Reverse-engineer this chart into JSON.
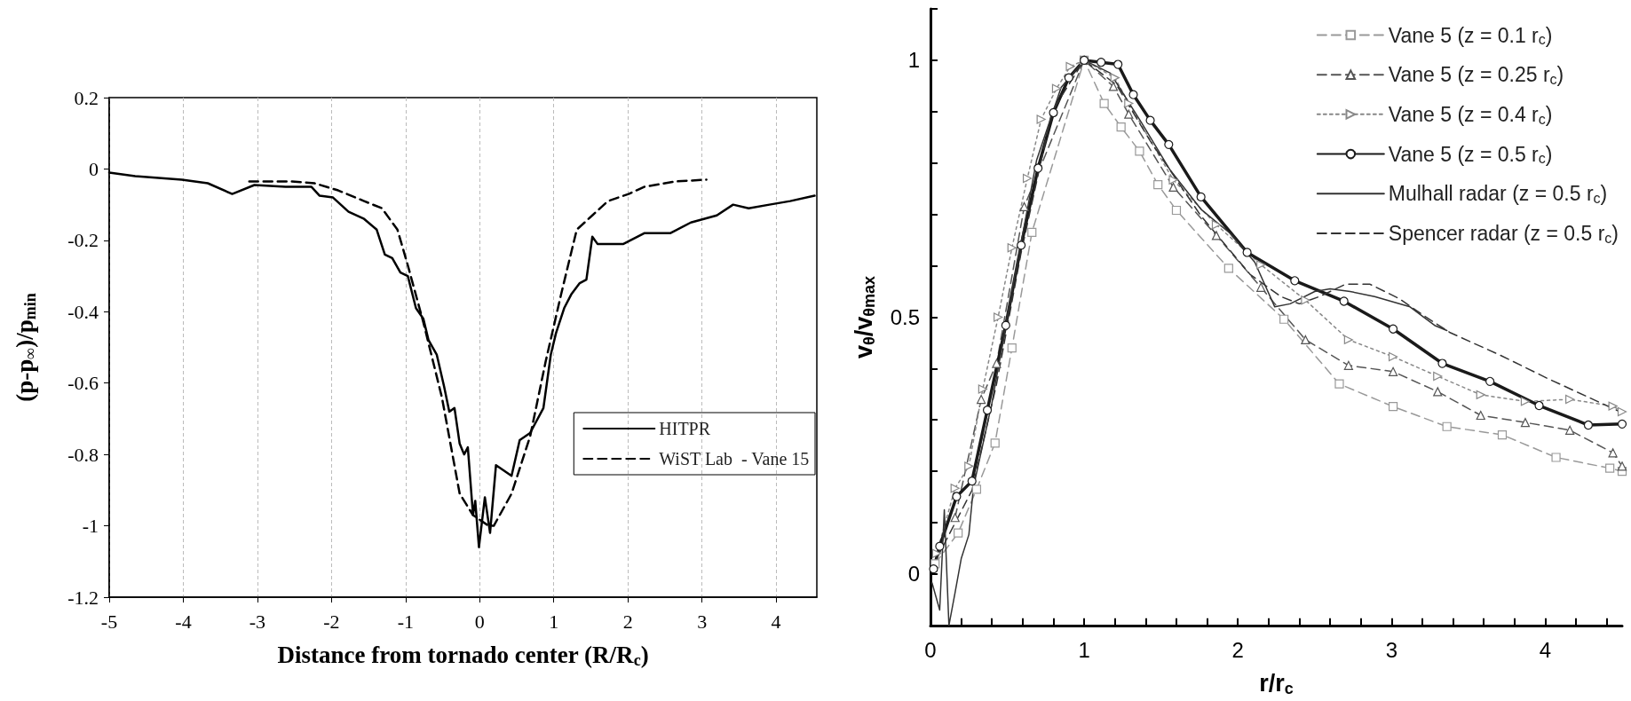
{
  "chart_data": [
    {
      "type": "line",
      "xlabel": "Distance from tornado center (R/R$_{c}$)",
      "ylabel": "(p-p$_{∞}$)/p$_{min}$",
      "xlim": [
        -5,
        4.55
      ],
      "xticks": [
        -5,
        -4,
        -3,
        -2,
        -1,
        0,
        1,
        2,
        3,
        4
      ],
      "ylim": [
        -1.2,
        0.2
      ],
      "yticks": [
        -1.2,
        -1,
        -0.8,
        -0.6,
        -0.4,
        -0.2,
        0,
        0.2
      ],
      "grid": "x",
      "legend": "bottom right",
      "marker": "none",
      "series": [
        {
          "name": "HITPR",
          "color": "#000000",
          "line_style": "solid",
          "x": [
            -5,
            -4.65,
            -4.02,
            -3.67,
            -3.34,
            -3.04,
            -2.62,
            -2.27,
            -2.16,
            -1.98,
            -1.77,
            -1.56,
            -1.39,
            -1.28,
            -1.18,
            -1.07,
            -0.97,
            -0.86,
            -0.76,
            -0.69,
            -0.58,
            -0.48,
            -0.41,
            -0.34,
            -0.27,
            -0.21,
            -0.16,
            -0.09,
            -0.06,
            -0.01,
            0.07,
            0.14,
            0.22,
            0.29,
            0.43,
            0.54,
            0.68,
            0.86,
            0.96,
            1.03,
            1.14,
            1.24,
            1.35,
            1.44,
            1.52,
            1.59,
            1.7,
            1.94,
            2.22,
            2.57,
            2.85,
            3.2,
            3.42,
            3.63,
            3.91,
            4.19,
            4.52
          ],
          "values": [
            -0.01,
            -0.02,
            -0.03,
            -0.04,
            -0.07,
            -0.045,
            -0.05,
            -0.05,
            -0.075,
            -0.08,
            -0.12,
            -0.14,
            -0.17,
            -0.24,
            -0.25,
            -0.29,
            -0.3,
            -0.39,
            -0.42,
            -0.48,
            -0.52,
            -0.61,
            -0.68,
            -0.67,
            -0.77,
            -0.8,
            -0.78,
            -0.97,
            -0.93,
            -1.06,
            -0.92,
            -1.02,
            -0.83,
            -0.84,
            -0.86,
            -0.76,
            -0.74,
            -0.67,
            -0.52,
            -0.46,
            -0.39,
            -0.35,
            -0.32,
            -0.31,
            -0.19,
            -0.21,
            -0.21,
            -0.21,
            -0.18,
            -0.18,
            -0.15,
            -0.13,
            -0.1,
            -0.11,
            -0.1,
            -0.09,
            -0.075
          ]
        },
        {
          "name": "WiST Lab  - Vane 15",
          "color": "#000000",
          "line_style": "dashed",
          "x": [
            -3.11,
            -2.55,
            -2.23,
            -1.91,
            -1.56,
            -1.32,
            -1.11,
            -0.97,
            -0.76,
            -0.51,
            -0.27,
            -0.09,
            0.12,
            0.19,
            0.43,
            0.68,
            0.89,
            1.1,
            1.31,
            1.52,
            1.73,
            2.01,
            2.22,
            2.64,
            3.06
          ],
          "values": [
            -0.035,
            -0.035,
            -0.04,
            -0.06,
            -0.09,
            -0.11,
            -0.17,
            -0.27,
            -0.43,
            -0.64,
            -0.91,
            -0.97,
            -1,
            -1,
            -0.91,
            -0.75,
            -0.54,
            -0.35,
            -0.17,
            -0.13,
            -0.09,
            -0.07,
            -0.05,
            -0.035,
            -0.03
          ]
        }
      ]
    },
    {
      "type": "line",
      "xlabel": "r/r$_{c}$",
      "ylabel": "v$_{θ}$/v$_{θmax}$",
      "xlim": [
        0,
        4.5
      ],
      "xticks": [
        0,
        {
          "value": 0.2,
          "label": null
        },
        {
          "value": 0.4,
          "label": null
        },
        {
          "value": 0.6,
          "label": null
        },
        {
          "value": 0.8,
          "label": null
        },
        1,
        {
          "value": 1.2,
          "label": null
        },
        {
          "value": 1.4,
          "label": null
        },
        {
          "value": 1.6,
          "label": null
        },
        {
          "value": 1.8,
          "label": null
        },
        2,
        {
          "value": 2.2,
          "label": null
        },
        {
          "value": 2.4,
          "label": null
        },
        {
          "value": 2.6,
          "label": null
        },
        {
          "value": 2.8,
          "label": null
        },
        3,
        {
          "value": 3.2,
          "label": null
        },
        {
          "value": 3.4,
          "label": null
        },
        {
          "value": 3.6,
          "label": null
        },
        {
          "value": 3.8,
          "label": null
        },
        4,
        {
          "value": 4.2,
          "label": null
        },
        {
          "value": 4.4,
          "label": null
        }
      ],
      "ylim": [
        -0.1,
        1.1
      ],
      "yticks": [
        0,
        {
          "value": 0.1,
          "label": null
        },
        {
          "value": 0.2,
          "label": null
        },
        {
          "value": 0.3,
          "label": null
        },
        {
          "value": 0.4,
          "label": null
        },
        0.5,
        {
          "value": 0.6,
          "label": null
        },
        {
          "value": 0.7,
          "label": null
        },
        {
          "value": 0.8,
          "label": null
        },
        {
          "value": 0.9,
          "label": null
        },
        1,
        {
          "value": 1.1,
          "label": null
        }
      ],
      "legend": "top right",
      "series": [
        {
          "name": "Vane 5 (z = 0.1 r$_{c}$)",
          "color": "#999999",
          "line_style": "dashed",
          "marker": "square",
          "x": [
            0.03,
            0.18,
            0.3,
            0.42,
            0.53,
            0.66,
            1,
            1.13,
            1.24,
            1.36,
            1.48,
            1.6,
            1.94,
            2.3,
            2.66,
            3.01,
            3.36,
            3.72,
            4.07,
            4.42,
            4.5
          ],
          "values": [
            0.02,
            0.08,
            0.165,
            0.255,
            0.44,
            0.665,
            1,
            0.916,
            0.87,
            0.823,
            0.758,
            0.708,
            0.595,
            0.496,
            0.37,
            0.326,
            0.287,
            0.271,
            0.227,
            0.206,
            0.2
          ]
        },
        {
          "name": "Vane 5 (z = 0.25 r$_{c}$)",
          "color": "#555555",
          "line_style": "dashed",
          "marker": "triangle",
          "x": [
            0.16,
            0.33,
            0.43,
            0.61,
            1,
            1.19,
            1.29,
            1.58,
            1.86,
            2.15,
            2.44,
            2.72,
            3.01,
            3.3,
            3.58,
            3.87,
            4.16,
            4.44,
            4.5
          ],
          "values": [
            0.11,
            0.34,
            0.41,
            0.715,
            1,
            0.949,
            0.895,
            0.753,
            0.659,
            0.558,
            0.456,
            0.406,
            0.394,
            0.355,
            0.309,
            0.295,
            0.28,
            0.236,
            0.21
          ]
        },
        {
          "name": "Vane 5 (z = 0.4 r$_{c}$)",
          "color": "#888888",
          "line_style": "dotted",
          "marker": "triangle",
          "x": [
            0.04,
            0.16,
            0.25,
            0.34,
            0.44,
            0.53,
            0.63,
            0.72,
            0.82,
            0.91,
            1,
            1.2,
            1.29,
            1.58,
            1.86,
            2.15,
            2.44,
            2.72,
            3.01,
            3.3,
            3.58,
            3.87,
            4.16,
            4.44,
            4.5
          ],
          "values": [
            0.04,
            0.167,
            0.21,
            0.36,
            0.5,
            0.635,
            0.77,
            0.885,
            0.945,
            0.988,
            1,
            0.966,
            0.916,
            0.767,
            0.68,
            0.602,
            0.533,
            0.456,
            0.423,
            0.385,
            0.349,
            0.336,
            0.34,
            0.327,
            0.316
          ]
        },
        {
          "name": "Vane 5 (z = 0.5 r$_{c}$)",
          "color": "#1a1a1a",
          "line_style": "solid",
          "marker": "circle",
          "x": [
            0.02,
            0.06,
            0.17,
            0.27,
            0.37,
            0.49,
            0.59,
            0.7,
            0.8,
            0.9,
            1,
            1.11,
            1.22,
            1.32,
            1.43,
            1.55,
            1.76,
            2.06,
            2.37,
            2.69,
            3.01,
            3.33,
            3.64,
            3.96,
            4.28,
            4.5
          ],
          "values": [
            0.01,
            0.054,
            0.151,
            0.181,
            0.319,
            0.484,
            0.64,
            0.79,
            0.898,
            0.966,
            1,
            0.996,
            0.992,
            0.933,
            0.883,
            0.836,
            0.734,
            0.626,
            0.571,
            0.531,
            0.477,
            0.41,
            0.375,
            0.328,
            0.29,
            0.292
          ]
        },
        {
          "name": "Mulhall radar (z = 0.5 r$_{c}$)",
          "color": "#333333",
          "line_style": "solid",
          "marker": "none",
          "x": [
            0.01,
            0.06,
            0.09,
            0.12,
            0.16,
            0.2,
            0.25,
            0.28,
            0.4,
            0.53,
            0.69,
            0.85,
            1,
            1.17,
            1.37,
            1.56,
            1.76,
            1.95,
            2.11,
            2.24,
            2.34,
            2.5,
            2.6,
            2.73,
            2.89,
            3.12,
            3.28,
            3.36
          ],
          "values": [
            -0.017,
            -0.07,
            0.125,
            -0.1,
            -0.036,
            0.03,
            0.077,
            0.17,
            0.333,
            0.55,
            0.805,
            0.947,
            1,
            0.975,
            0.88,
            0.786,
            0.71,
            0.663,
            0.607,
            0.52,
            0.526,
            0.55,
            0.555,
            0.55,
            0.54,
            0.52,
            0.484,
            0.474
          ]
        },
        {
          "name": "Spencer radar (z = 0.5 r$_{c}$)",
          "color": "#333333",
          "line_style": "dashed",
          "marker": "none",
          "x": [
            0.04,
            0.27,
            0.43,
            0.59,
            0.79,
            1,
            1.21,
            1.43,
            1.76,
            2.08,
            2.28,
            2.4,
            2.53,
            2.7,
            2.86,
            3.05,
            3.21,
            3.38,
            3.7,
            4.02,
            4.5
          ],
          "values": [
            0.03,
            0.163,
            0.37,
            0.626,
            0.9,
            1,
            0.952,
            0.843,
            0.697,
            0.583,
            0.54,
            0.526,
            0.54,
            0.564,
            0.564,
            0.536,
            0.503,
            0.47,
            0.427,
            0.38,
            0.314
          ]
        }
      ]
    }
  ]
}
